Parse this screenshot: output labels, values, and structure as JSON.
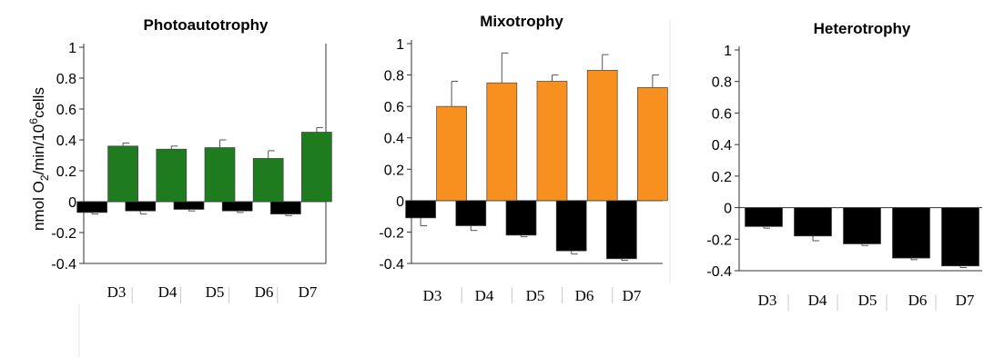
{
  "ylabel": {
    "prefix": "nmol O",
    "sub": "2",
    "mid": "/min/10",
    "sup": "6",
    "suffix": "cells"
  },
  "chart_data": [
    {
      "type": "bar",
      "title": "Photoautotrophy",
      "categories": [
        "D3",
        "D4",
        "D5",
        "D6",
        "D7"
      ],
      "yticks": [
        "1",
        "0.8",
        "0.6",
        "0.4",
        "0.2",
        "0",
        "-0.2",
        "-0.4"
      ],
      "ylim": [
        -0.4,
        1
      ],
      "series": [
        {
          "values": [
            -0.07,
            -0.06,
            -0.05,
            -0.06,
            -0.08
          ],
          "errors": [
            0.01,
            0.02,
            0.01,
            0.01,
            0.01
          ],
          "color": "#000000"
        },
        {
          "values": [
            0.36,
            0.34,
            0.35,
            0.28,
            0.45
          ],
          "errors": [
            0.02,
            0.02,
            0.05,
            0.05,
            0.03
          ],
          "color": "#1e7b1e"
        }
      ]
    },
    {
      "type": "bar",
      "title": "Mixotrophy",
      "categories": [
        "D3",
        "D4",
        "D5",
        "D6",
        "D7"
      ],
      "yticks": [
        "1",
        "0.8",
        "0.6",
        "0.4",
        "0.2",
        "0",
        "-0.2",
        "-0.4"
      ],
      "ylim": [
        -0.4,
        1
      ],
      "series": [
        {
          "values": [
            -0.11,
            -0.16,
            -0.22,
            -0.32,
            -0.37
          ],
          "errors": [
            0.05,
            0.03,
            0.01,
            0.02,
            0.01
          ],
          "color": "#000000"
        },
        {
          "values": [
            0.6,
            0.75,
            0.76,
            0.83,
            0.72
          ],
          "errors": [
            0.16,
            0.19,
            0.04,
            0.1,
            0.08
          ],
          "color": "#f7901e"
        }
      ]
    },
    {
      "type": "bar",
      "title": "Heterotrophy",
      "categories": [
        "D3",
        "D4",
        "D5",
        "D6",
        "D7"
      ],
      "yticks": [
        "1",
        "0.8",
        "0.6",
        "0.4",
        "0.2",
        "0",
        "-0.2",
        "-0.4"
      ],
      "ylim": [
        -0.4,
        1
      ],
      "series": [
        {
          "values": [
            -0.12,
            -0.18,
            -0.23,
            -0.32,
            -0.37
          ],
          "errors": [
            0.01,
            0.03,
            0.01,
            0.01,
            0.01
          ],
          "color": "#000000"
        }
      ]
    }
  ]
}
